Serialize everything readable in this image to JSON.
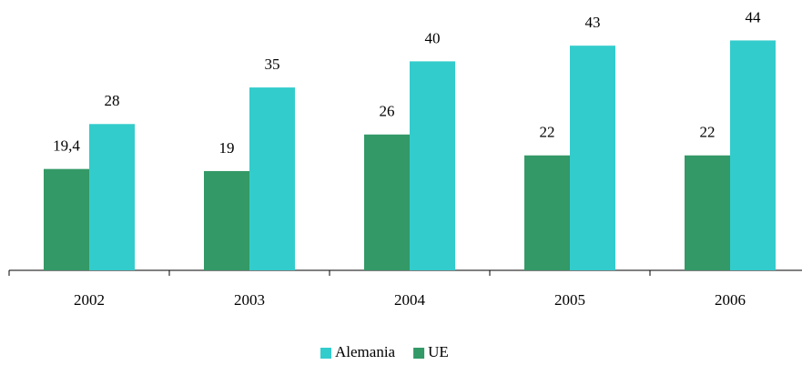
{
  "chart_data": {
    "type": "bar",
    "categories": [
      "2002",
      "2003",
      "2004",
      "2005",
      "2006"
    ],
    "series": [
      {
        "name": "UE",
        "color": "#339966",
        "values": [
          19.4,
          19,
          26,
          22,
          22
        ],
        "value_labels": [
          "19,4",
          "19",
          "26",
          "22",
          "22"
        ]
      },
      {
        "name": "Alemania",
        "color": "#33cccc",
        "values": [
          28,
          35,
          40,
          43,
          44
        ]
      }
    ],
    "ylim": [
      0,
      50
    ],
    "legend": "bottom"
  }
}
